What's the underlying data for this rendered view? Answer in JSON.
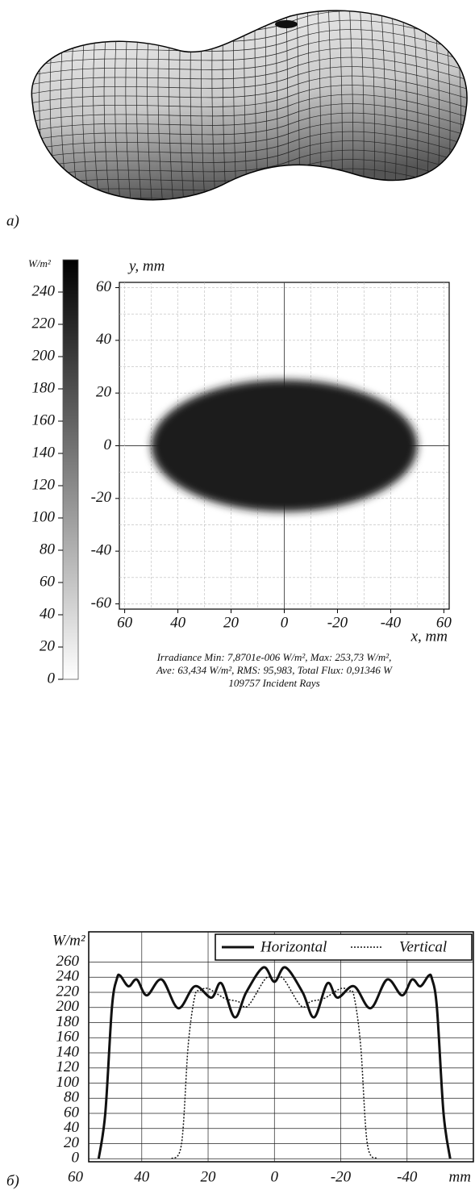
{
  "chart_data": [
    {
      "type": "surface",
      "panel_label": "a)"
    },
    {
      "type": "heatmap",
      "y_label": "y, mm",
      "x_label": "x, mm",
      "xlim": [
        62,
        -62
      ],
      "ylim": [
        -62,
        62
      ],
      "xticks": [
        60,
        40,
        20,
        0,
        -20,
        -40,
        {
          "value": -60,
          "label": "60"
        }
      ],
      "yticks": [
        60,
        40,
        20,
        0,
        -20,
        -40,
        -60
      ],
      "grid_lines": [
        -60,
        -50,
        -40,
        -30,
        -20,
        -10,
        0,
        10,
        20,
        30,
        40,
        50,
        60
      ],
      "spot": {
        "center": [
          0,
          0
        ],
        "half_width": 50,
        "half_height": 25,
        "level": 230
      },
      "colorbar": {
        "label": "W/m²",
        "lim": [
          0,
          260
        ],
        "ticks": [
          0,
          20,
          40,
          60,
          80,
          100,
          120,
          140,
          160,
          180,
          200,
          220,
          240
        ],
        "colors": [
          "#ffffff",
          "#000000"
        ]
      },
      "caption": [
        "Irradiance  Min: 7,8701e-006 W/m², Max: 253,73 W/m²,",
        "Ave: 63,434 W/m², RMS: 95,983, Total Flux: 0,91346 W",
        "109757 Incident Rays"
      ]
    },
    {
      "type": "line",
      "panel_label": "б)",
      "y_label": "W/m²",
      "x_label": "mm",
      "xlim": [
        56,
        -60
      ],
      "ylim": [
        -4,
        300
      ],
      "xticks": [
        60,
        40,
        20,
        0,
        -20,
        -40
      ],
      "yticks": [
        0,
        20,
        40,
        60,
        80,
        100,
        120,
        140,
        160,
        180,
        200,
        220,
        240,
        260
      ],
      "grid": true,
      "legend": "upper right",
      "series": [
        {
          "name": "Horizontal",
          "color": "#111111",
          "style": "solid",
          "x": [
            53,
            51,
            49,
            47.5,
            46.5,
            44,
            41.5,
            38.5,
            34,
            29,
            24,
            19,
            16,
            12,
            8.5,
            3.3,
            0,
            -3.3,
            -8.5,
            -12,
            -16,
            -19,
            -24,
            -29,
            -34,
            -38.5,
            -41.5,
            -44,
            -46.5,
            -47.5,
            -49,
            -51,
            -53
          ],
          "values": [
            0,
            60,
            200,
            238,
            242,
            228,
            237,
            216,
            237,
            199,
            228,
            213,
            232,
            187,
            220,
            253,
            234,
            253,
            220,
            187,
            232,
            213,
            228,
            199,
            237,
            216,
            237,
            228,
            242,
            238,
            200,
            60,
            0
          ]
        },
        {
          "name": "Vertical",
          "color": "#111111",
          "style": "dotted",
          "x": [
            31,
            28,
            26,
            24,
            22.5,
            20,
            15,
            11,
            8,
            2.5,
            0,
            -2.5,
            -8,
            -11,
            -15,
            -20,
            -22.5,
            -24,
            -26,
            -28,
            -31
          ],
          "values": [
            0,
            20,
            150,
            215,
            222,
            225,
            212,
            208,
            202,
            239,
            234,
            239,
            202,
            208,
            212,
            225,
            222,
            215,
            150,
            20,
            0
          ]
        }
      ]
    }
  ]
}
